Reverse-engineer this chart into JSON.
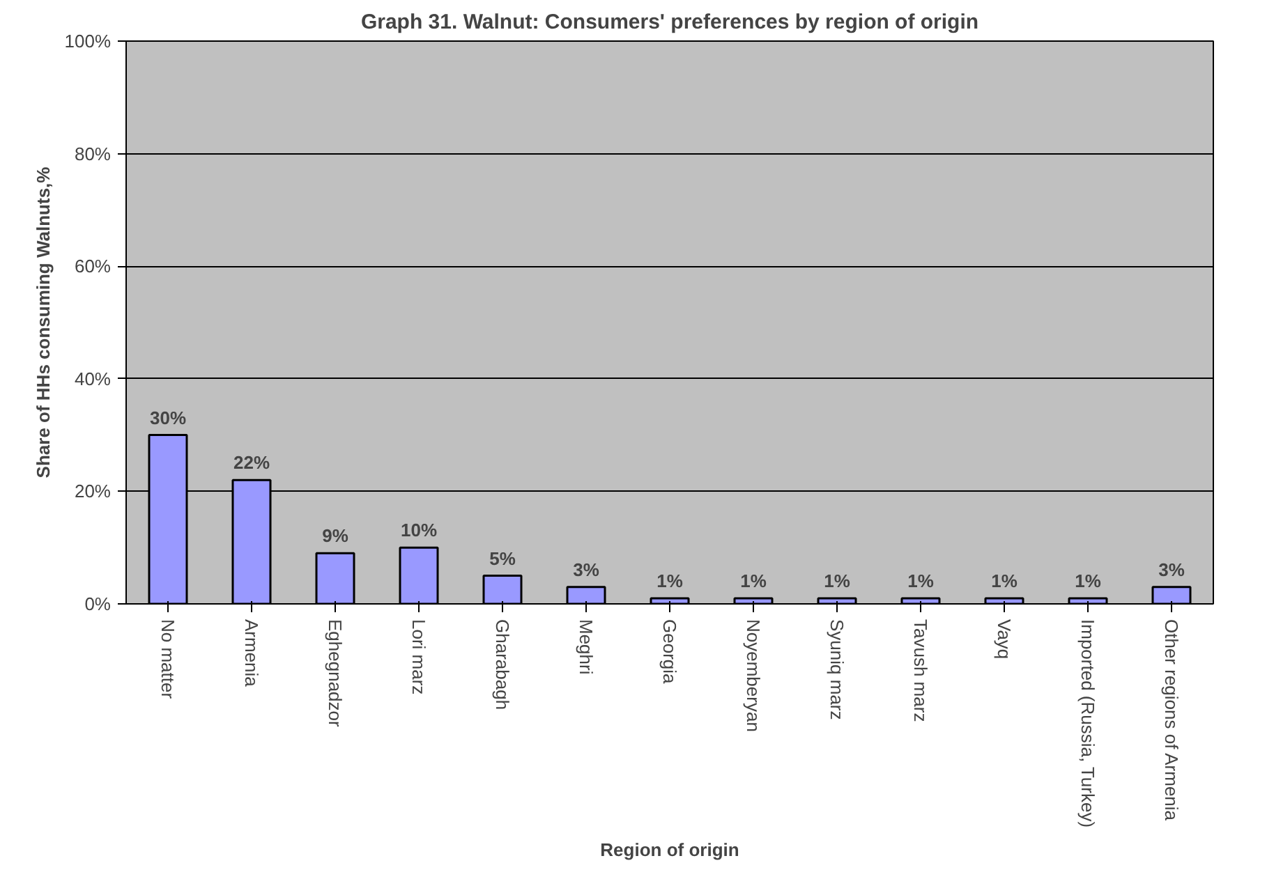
{
  "chart_data": {
    "type": "bar",
    "title": "Graph 31. Walnut: Consumers' preferences by region of origin",
    "xlabel": "Region of origin",
    "ylabel": "Share of HHs consuming Walnuts,%",
    "categories": [
      "No matter",
      "Armenia",
      "Eghegnadzor",
      "Lori marz",
      "Gharabagh",
      "Meghri",
      "Georgia",
      "Noyemberyan",
      "Syuniq marz",
      "Tavush marz",
      "Vayq",
      "Imported (Russia, Turkey)",
      "Other regions of Armenia"
    ],
    "values": [
      30,
      22,
      9,
      10,
      5,
      3,
      1,
      1,
      1,
      1,
      1,
      1,
      3
    ],
    "value_labels": [
      "30%",
      "22%",
      "9%",
      "10%",
      "5%",
      "3%",
      "1%",
      "1%",
      "1%",
      "1%",
      "1%",
      "1%",
      "3%"
    ],
    "color": "#9999ff",
    "ylim": [
      0,
      100
    ],
    "yticks": [
      {
        "value": 0,
        "label": "0%"
      },
      {
        "value": 20,
        "label": "20%"
      },
      {
        "value": 40,
        "label": "40%"
      },
      {
        "value": 60,
        "label": "60%"
      },
      {
        "value": 80,
        "label": "80%"
      },
      {
        "value": 100,
        "label": "100%"
      }
    ],
    "grid": "y"
  }
}
